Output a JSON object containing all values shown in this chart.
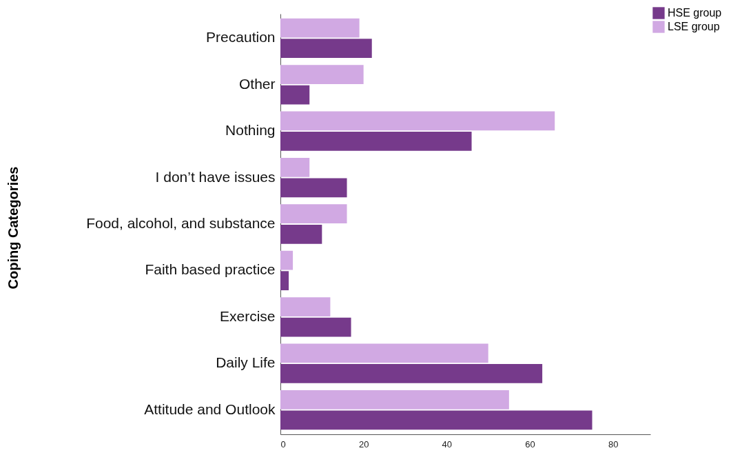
{
  "chart_data": {
    "type": "bar",
    "orientation": "horizontal",
    "ylabel": "Coping Categories",
    "categories": [
      "Precaution",
      "Other",
      "Nothing",
      "I don’t have issues",
      "Food, alcohol, and substance",
      "Faith based practice",
      "Exercise",
      "Daily Life",
      "Attitude and Outlook"
    ],
    "series": [
      {
        "name": "HSE group",
        "color": "#763a8b",
        "values": [
          22,
          7,
          46,
          16,
          10,
          2,
          17,
          63,
          75
        ]
      },
      {
        "name": "LSE group",
        "color": "#d1a9e3",
        "values": [
          19,
          20,
          66,
          7,
          16,
          3,
          12,
          50,
          55
        ]
      }
    ],
    "xlim": [
      0,
      89
    ],
    "xticks": [
      0,
      20,
      40,
      60,
      80
    ],
    "grid": false,
    "legend": "top right"
  }
}
